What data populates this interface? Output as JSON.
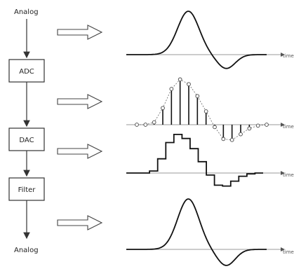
{
  "chain": {
    "input_label": "Analog",
    "output_label": "Analog",
    "blocks": [
      "ADC",
      "DAC",
      "Filter"
    ]
  },
  "axis_label": "time",
  "waveform": {
    "type": "pulse",
    "samples": [
      0,
      0,
      0.05,
      0.35,
      0.75,
      0.95,
      0.85,
      0.6,
      0.28,
      -0.05,
      -0.3,
      -0.32,
      -0.2,
      -0.08,
      -0.02,
      0
    ]
  },
  "colors": {
    "line": "#111111",
    "grid": "#999999",
    "box": "#333333"
  }
}
